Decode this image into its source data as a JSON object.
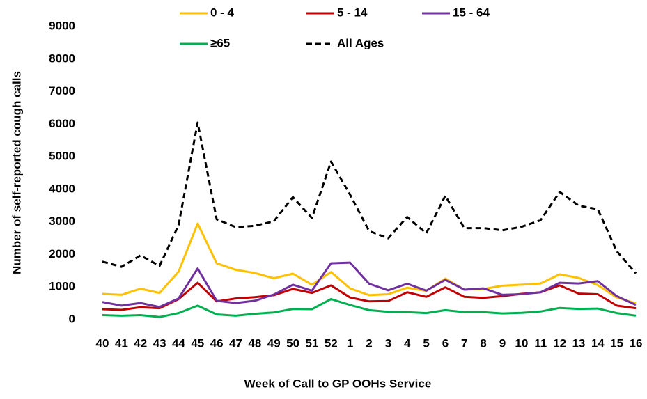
{
  "chart_data": {
    "type": "line",
    "x_label": "Week of Call to GP OOHs Service",
    "y_label": "Number of self-reported cough calls",
    "categories": [
      "40",
      "41",
      "42",
      "43",
      "44",
      "45",
      "46",
      "47",
      "48",
      "49",
      "50",
      "51",
      "52",
      "1",
      "2",
      "3",
      "4",
      "5",
      "6",
      "7",
      "8",
      "9",
      "10",
      "11",
      "12",
      "13",
      "14",
      "15",
      "16"
    ],
    "series": [
      {
        "name": "0 - 4",
        "color": "#FFC000",
        "line_style": "solid",
        "values": [
          790,
          760,
          950,
          820,
          1470,
          2950,
          1730,
          1530,
          1430,
          1270,
          1410,
          1070,
          1460,
          960,
          750,
          780,
          980,
          880,
          1260,
          920,
          940,
          1040,
          1070,
          1110,
          1390,
          1280,
          1060,
          680,
          500
        ]
      },
      {
        "name": "5 - 14",
        "color": "#C00000",
        "line_style": "solid",
        "values": [
          320,
          300,
          380,
          350,
          630,
          1130,
          560,
          650,
          690,
          750,
          940,
          820,
          1050,
          680,
          560,
          570,
          840,
          700,
          990,
          700,
          670,
          720,
          790,
          840,
          1050,
          800,
          780,
          430,
          350
        ]
      },
      {
        "name": "15 - 64",
        "color": "#7030A0",
        "line_style": "solid",
        "values": [
          540,
          430,
          510,
          390,
          650,
          1570,
          580,
          510,
          580,
          770,
          1070,
          890,
          1730,
          1750,
          1100,
          900,
          1100,
          890,
          1220,
          920,
          960,
          760,
          780,
          840,
          1130,
          1110,
          1180,
          720,
          450
        ]
      },
      {
        "name": "≥65",
        "color": "#00B050",
        "line_style": "solid",
        "values": [
          140,
          120,
          140,
          80,
          200,
          430,
          160,
          120,
          180,
          220,
          330,
          320,
          630,
          450,
          290,
          240,
          230,
          200,
          290,
          230,
          230,
          190,
          210,
          250,
          360,
          330,
          340,
          200,
          120
        ]
      },
      {
        "name": "All Ages",
        "color": "#000000",
        "line_style": "dashed",
        "values": [
          1780,
          1620,
          1970,
          1650,
          2900,
          6050,
          3080,
          2840,
          2880,
          3020,
          3760,
          3120,
          4850,
          3840,
          2720,
          2500,
          3150,
          2650,
          3800,
          2810,
          2810,
          2740,
          2850,
          3050,
          3920,
          3500,
          3390,
          2100,
          1420
        ]
      }
    ],
    "ylim": [
      0,
      9000
    ],
    "yticks": [
      0,
      1000,
      2000,
      3000,
      4000,
      5000,
      6000,
      7000,
      8000,
      9000
    ],
    "grid": false,
    "legend": "top"
  }
}
